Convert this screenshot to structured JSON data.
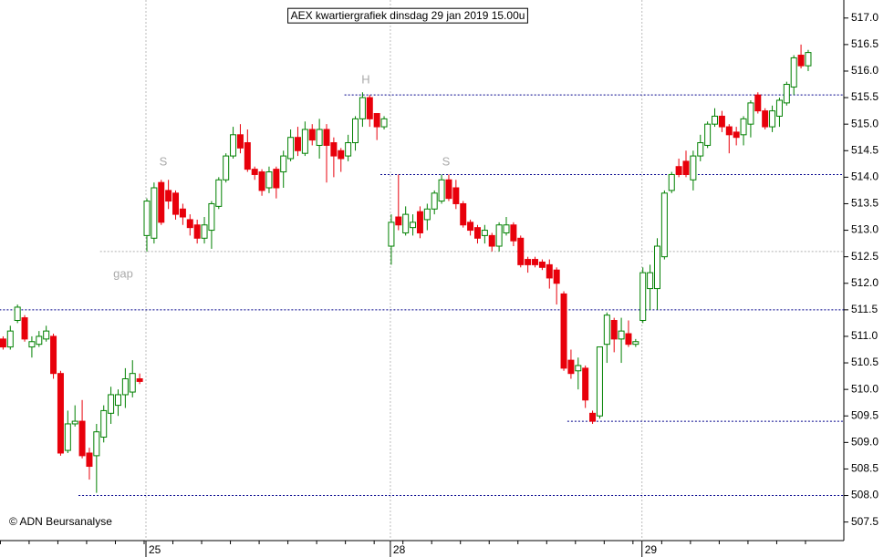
{
  "chart_data": {
    "type": "candlestick",
    "title": "AEX kwartiergrafiek dinsdag 29 jan 2019 15.00u",
    "copyright": "© ADN Beursanalyse",
    "annotations": [
      "S",
      "H",
      "S",
      "gap"
    ],
    "categories": [
      null,
      null,
      null,
      null,
      null,
      null,
      null,
      null,
      null,
      null,
      null,
      null,
      null,
      null,
      null,
      null,
      null,
      null,
      null,
      null,
      "25",
      null,
      null,
      null,
      null,
      null,
      null,
      null,
      null,
      null,
      null,
      null,
      null,
      null,
      null,
      null,
      null,
      null,
      null,
      null,
      null,
      null,
      null,
      null,
      null,
      null,
      null,
      null,
      null,
      null,
      null,
      null,
      null,
      null,
      "28",
      null,
      null,
      null,
      null,
      null,
      null,
      null,
      null,
      null,
      null,
      null,
      null,
      null,
      null,
      null,
      null,
      null,
      null,
      null,
      null,
      null,
      null,
      null,
      null,
      null,
      null,
      null,
      null,
      null,
      null,
      null,
      null,
      null,
      null,
      "29",
      null,
      null,
      null,
      null,
      null,
      null,
      null,
      null,
      null,
      null,
      null,
      null,
      null,
      null,
      null,
      null,
      null,
      null,
      null,
      null,
      null,
      null,
      null
    ],
    "open": [
      510.95,
      510.8,
      511.3,
      511.35,
      510.8,
      510.85,
      510.95,
      511.0,
      510.3,
      508.85,
      509.35,
      509.4,
      508.8,
      508.75,
      509.1,
      509.55,
      509.7,
      509.9,
      509.95,
      510.2,
      512.9,
      512.85,
      513.9,
      513.75,
      513.7,
      513.4,
      513.2,
      513.1,
      512.85,
      513.0,
      513.45,
      513.95,
      514.4,
      514.8,
      514.65,
      514.15,
      514.1,
      513.8,
      514.15,
      514.1,
      514.35,
      514.75,
      514.45,
      514.9,
      514.6,
      514.9,
      514.65,
      514.5,
      514.4,
      514.65,
      515.1,
      515.5,
      515.2,
      514.95,
      512.7,
      513.25,
      512.95,
      513.05,
      513.35,
      513.2,
      513.4,
      513.55,
      513.95,
      513.8,
      513.5,
      513.15,
      513.05,
      512.9,
      512.9,
      512.7,
      512.95,
      513.1,
      512.85,
      512.45,
      512.45,
      512.4,
      512.35,
      512.25,
      511.8,
      510.55,
      510.35,
      510.4,
      509.55,
      509.5,
      510.85,
      511.3,
      510.95,
      511.05,
      510.85,
      511.3,
      511.9,
      511.9,
      512.5,
      513.75,
      514.2,
      514.3,
      513.95,
      514.4,
      514.6,
      515.0,
      515.15,
      514.95,
      514.85,
      514.8,
      515.0,
      515.55,
      515.25,
      514.95,
      515.15,
      515.4,
      515.7,
      516.3,
      516.1
    ],
    "high": [
      511.0,
      511.2,
      511.6,
      511.4,
      511.0,
      511.1,
      511.2,
      511.05,
      510.35,
      509.6,
      509.7,
      509.8,
      508.9,
      509.35,
      509.7,
      510.05,
      510.0,
      510.4,
      510.55,
      510.3,
      513.6,
      513.9,
      513.95,
      513.95,
      513.75,
      513.5,
      513.3,
      513.2,
      513.25,
      513.55,
      514.0,
      514.45,
      514.95,
      515.0,
      514.9,
      514.2,
      514.15,
      514.2,
      514.2,
      514.5,
      514.9,
      514.95,
      515.05,
      515.0,
      515.1,
      515.0,
      514.75,
      514.55,
      514.8,
      515.15,
      515.6,
      515.55,
      515.2,
      515.15,
      513.3,
      514.05,
      513.45,
      513.3,
      513.45,
      513.5,
      513.75,
      514.05,
      514.05,
      513.95,
      513.55,
      513.2,
      513.1,
      513.1,
      512.95,
      513.15,
      513.25,
      513.15,
      512.9,
      512.5,
      512.5,
      512.45,
      512.45,
      512.3,
      511.85,
      510.75,
      510.6,
      510.45,
      509.6,
      510.8,
      511.45,
      511.35,
      511.35,
      511.3,
      510.95,
      512.3,
      512.35,
      512.85,
      513.75,
      514.1,
      514.35,
      514.5,
      514.5,
      514.8,
      515.05,
      515.3,
      515.25,
      515.0,
      514.95,
      515.15,
      515.45,
      515.6,
      515.3,
      515.35,
      515.5,
      515.8,
      516.3,
      516.5,
      516.4
    ],
    "low": [
      510.75,
      510.75,
      511.25,
      510.9,
      510.6,
      510.8,
      510.9,
      510.2,
      508.75,
      508.8,
      509.3,
      508.7,
      508.3,
      508.05,
      509.0,
      509.35,
      509.5,
      509.65,
      509.85,
      510.1,
      512.6,
      512.75,
      513.1,
      513.4,
      513.2,
      513.1,
      512.9,
      512.75,
      512.75,
      512.65,
      513.4,
      513.9,
      514.35,
      514.45,
      514.1,
      513.95,
      513.65,
      513.7,
      513.6,
      513.8,
      514.3,
      514.4,
      514.4,
      514.6,
      514.35,
      513.9,
      514.0,
      514.1,
      514.3,
      514.5,
      514.95,
      514.95,
      514.7,
      514.9,
      512.35,
      513.0,
      512.9,
      512.9,
      512.85,
      513.0,
      513.3,
      513.5,
      513.55,
      513.4,
      513.05,
      512.9,
      512.75,
      512.75,
      512.6,
      512.6,
      512.9,
      512.7,
      512.3,
      512.2,
      512.3,
      512.25,
      511.9,
      511.6,
      510.35,
      510.2,
      510.0,
      509.65,
      509.35,
      509.45,
      510.5,
      510.7,
      510.5,
      510.8,
      510.8,
      511.25,
      511.5,
      511.5,
      512.45,
      513.7,
      514.0,
      514.0,
      513.75,
      514.3,
      514.55,
      514.95,
      514.85,
      514.45,
      514.6,
      514.6,
      514.75,
      515.2,
      514.9,
      514.85,
      514.95,
      515.35,
      515.55,
      516.05,
      516.0
    ],
    "close": [
      510.8,
      511.1,
      511.55,
      510.95,
      510.9,
      511.0,
      511.1,
      510.3,
      508.8,
      509.35,
      509.4,
      508.75,
      508.55,
      509.2,
      509.6,
      509.9,
      509.9,
      510.2,
      510.3,
      510.15,
      513.55,
      513.8,
      513.15,
      513.55,
      513.3,
      513.25,
      513.05,
      512.85,
      513.1,
      513.5,
      513.95,
      514.4,
      514.8,
      514.55,
      514.15,
      514.05,
      513.75,
      514.1,
      513.8,
      514.4,
      514.75,
      514.5,
      514.9,
      514.7,
      514.9,
      514.6,
      514.4,
      514.35,
      514.65,
      515.1,
      515.5,
      515.1,
      514.95,
      515.1,
      513.15,
      513.1,
      513.3,
      513.15,
      512.95,
      513.4,
      513.7,
      513.95,
      513.6,
      513.5,
      513.1,
      513.0,
      512.85,
      513.0,
      512.7,
      513.1,
      513.1,
      512.8,
      512.35,
      512.35,
      512.35,
      512.3,
      512.1,
      512.0,
      510.4,
      510.3,
      510.45,
      509.8,
      509.4,
      510.8,
      511.4,
      510.95,
      511.1,
      510.85,
      510.9,
      512.2,
      512.2,
      512.7,
      513.7,
      514.05,
      514.05,
      514.05,
      514.4,
      514.65,
      515.0,
      515.15,
      514.95,
      514.8,
      514.75,
      515.1,
      515.4,
      515.25,
      514.95,
      515.25,
      515.45,
      515.75,
      516.25,
      516.1,
      516.35
    ],
    "up_color": "#008000",
    "down_color": "#e8000b",
    "levels": [
      {
        "value": 511.5,
        "from": 0,
        "color": "#00008b"
      },
      {
        "value": 508.0,
        "from": 11,
        "color": "#00008b"
      },
      {
        "value": 515.55,
        "from": 48,
        "color": "#00008b"
      },
      {
        "value": 514.05,
        "from": 53,
        "color": "#00008b"
      },
      {
        "value": 509.4,
        "from": 79,
        "color": "#00008b"
      },
      {
        "value": 512.6,
        "from": 14,
        "color": "#b0b0b0"
      }
    ],
    "ylim": [
      507.15,
      517.34
    ],
    "yticks": [
      {
        "value": 507.5,
        "label": "507.5"
      },
      {
        "value": 508,
        "label": "508.0"
      },
      {
        "value": 508.5,
        "label": "508.5"
      },
      {
        "value": 509,
        "label": "509.0"
      },
      {
        "value": 509.5,
        "label": "509.5"
      },
      {
        "value": 510,
        "label": "510.0"
      },
      {
        "value": 510.5,
        "label": "510.5"
      },
      {
        "value": 511,
        "label": "511.0"
      },
      {
        "value": 511.5,
        "label": "511.5"
      },
      {
        "value": 512,
        "label": "512.0"
      },
      {
        "value": 512.5,
        "label": "512.5"
      },
      {
        "value": 513,
        "label": "513.0"
      },
      {
        "value": 513.5,
        "label": "513.5"
      },
      {
        "value": 514,
        "label": "514.0"
      },
      {
        "value": 514.5,
        "label": "514.5"
      },
      {
        "value": 515,
        "label": "515.0"
      },
      {
        "value": 515.5,
        "label": "515.5"
      },
      {
        "value": 516,
        "label": "516.0"
      },
      {
        "value": 516.5,
        "label": "516.5"
      },
      {
        "value": 517,
        "label": "517.0"
      }
    ],
    "grid": false
  }
}
